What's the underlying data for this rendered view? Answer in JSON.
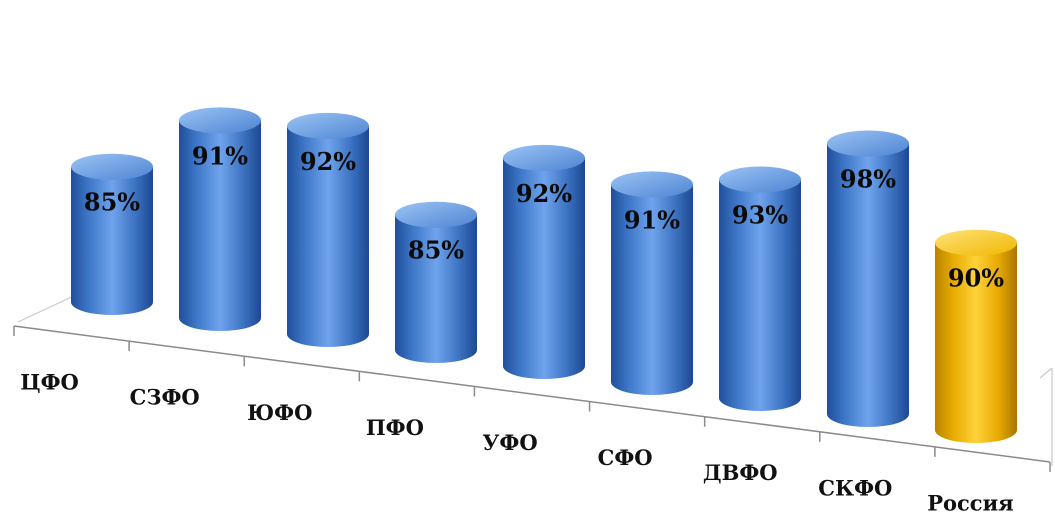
{
  "chart_data": {
    "type": "bar",
    "style": "3d-cylinder",
    "categories": [
      "ЦФО",
      "СЗФО",
      "ЮФО",
      "ПФО",
      "УФО",
      "СФО",
      "ДВФО",
      "СКФО",
      "Россия"
    ],
    "values": [
      85,
      91,
      92,
      85,
      92,
      91,
      93,
      98,
      90
    ],
    "value_labels": [
      "85%",
      "91%",
      "92%",
      "85%",
      "92%",
      "91%",
      "93%",
      "98%",
      "90%"
    ],
    "title": "",
    "xlabel": "",
    "ylabel": "",
    "grid": false,
    "legend": "none",
    "colors": {
      "default_bar": "#4f86d3",
      "highlight_bar": "#f2b800"
    },
    "highlight_category": "Россия"
  }
}
